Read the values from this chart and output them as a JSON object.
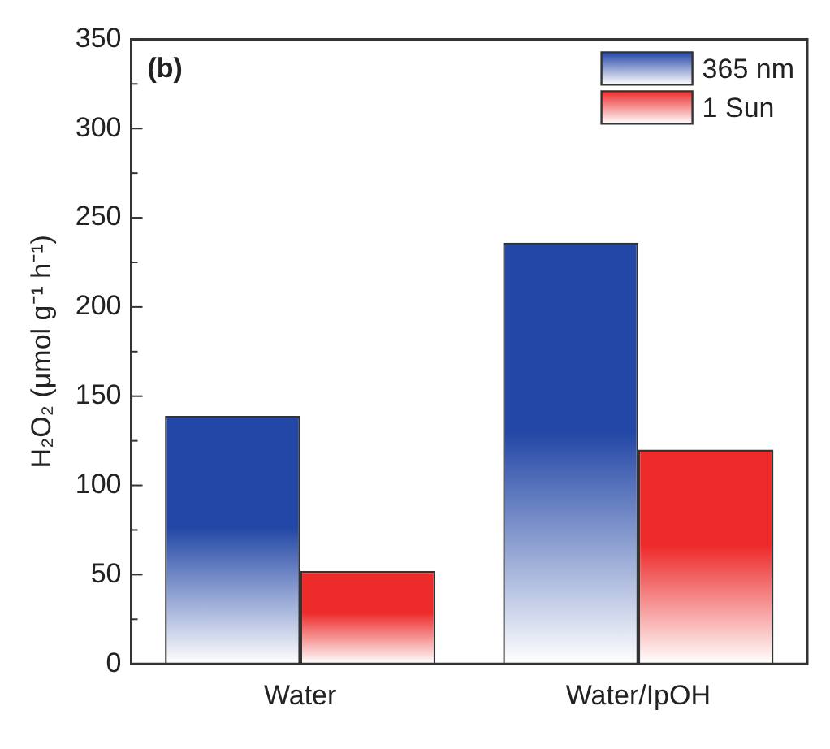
{
  "chart_data": {
    "type": "bar",
    "ylabel": "H₂O₂ (μmol g⁻¹ h⁻¹)",
    "categories": [
      "Water",
      "Water/IpOH"
    ],
    "series": [
      {
        "name": "365 nm",
        "color": "#2347a6",
        "values": [
          139,
          236
        ]
      },
      {
        "name": "1 Sun",
        "color": "#ee2b2b",
        "values": [
          52,
          120
        ]
      }
    ],
    "ylim": [
      0,
      350
    ],
    "yticks": [
      0,
      50,
      100,
      150,
      200,
      250,
      300,
      350
    ],
    "grid": false,
    "legend": "top right",
    "annotations": [
      "(b)"
    ]
  }
}
